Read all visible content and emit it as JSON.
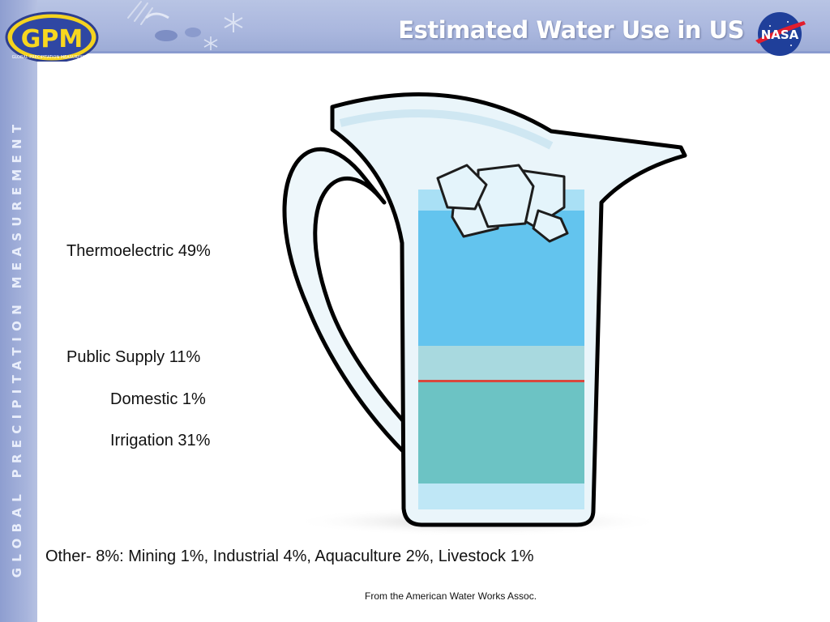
{
  "header": {
    "title": "Estimated Water Use in US"
  },
  "logos": {
    "gpm_text": "GPM",
    "gpm_subtext": "GLOBAL PRECIPITATION MEASUREMENT",
    "nasa_text": "NASA"
  },
  "sidebar": {
    "text": "GLOBAL PRECIPITATION MEASUREMENT"
  },
  "labels": {
    "thermoelectric": "Thermoelectric 49%",
    "public_supply": "Public Supply 11%",
    "domestic": "Domestic 1%",
    "irrigation": "Irrigation 31%",
    "other": "Other- 8%: Mining 1%, Industrial 4%, Aquaculture 2%, Livestock 1%"
  },
  "footnote": "From the American Water Works Assoc.",
  "colors": {
    "thermoelectric": "#63c4ee",
    "public_supply": "#a8d9df",
    "domestic_line": "#d9473e",
    "irrigation": "#6cc3c4",
    "other": "#bfe7f6",
    "header": "#aab7de"
  }
}
